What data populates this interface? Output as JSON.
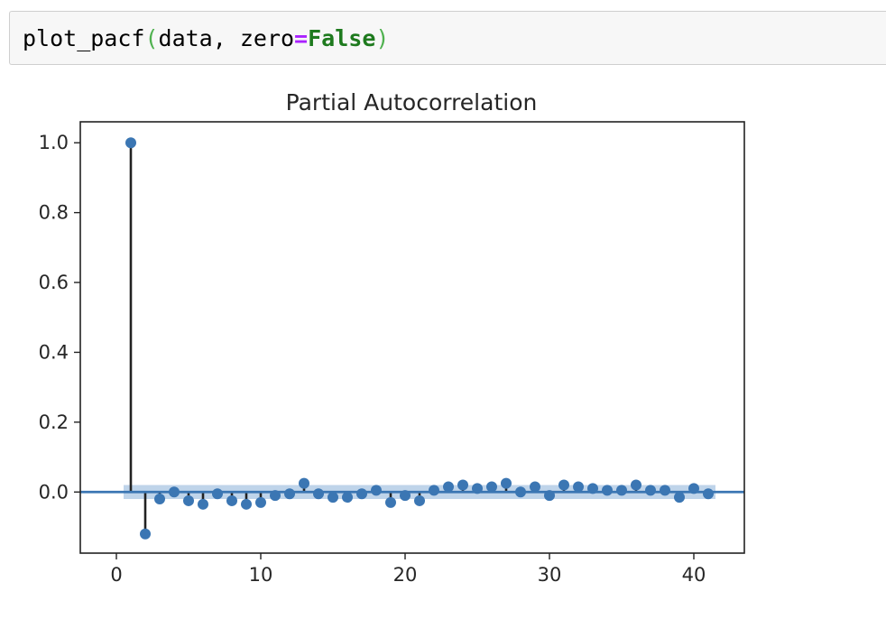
{
  "notebook": {
    "input_cell": {
      "func": "plot_pacf",
      "open_paren": "(",
      "arg1": "data, zero",
      "op": "=",
      "kw": "False",
      "close_paren": ")"
    }
  },
  "chart_data": {
    "type": "scatter",
    "title": "Partial Autocorrelation",
    "xlabel": "",
    "ylabel": "",
    "xlim": [
      -2.5,
      43.5
    ],
    "ylim": [
      -0.175,
      1.06
    ],
    "xticks": [
      0,
      10,
      20,
      30,
      40
    ],
    "yticks": [
      0.0,
      0.2,
      0.4,
      0.6,
      0.8,
      1.0
    ],
    "xtick_labels": [
      "0",
      "10",
      "20",
      "30",
      "40"
    ],
    "ytick_labels": [
      "0.0",
      "0.2",
      "0.4",
      "0.6",
      "0.8",
      "1.0"
    ],
    "grid": false,
    "style": "stem",
    "colors": {
      "marker": "#3b76b3",
      "stem": "#222222",
      "zero_line": "#3b76b3",
      "conf_band": "#a9c6e3"
    },
    "confidence_band": [
      -0.02,
      0.02
    ],
    "x": [
      1,
      2,
      3,
      4,
      5,
      6,
      7,
      8,
      9,
      10,
      11,
      12,
      13,
      14,
      15,
      16,
      17,
      18,
      19,
      20,
      21,
      22,
      23,
      24,
      25,
      26,
      27,
      28,
      29,
      30,
      31,
      32,
      33,
      34,
      35,
      36,
      37,
      38,
      39,
      40,
      41
    ],
    "y": [
      1.0,
      -0.12,
      -0.02,
      0.0,
      -0.025,
      -0.035,
      -0.005,
      -0.025,
      -0.035,
      -0.03,
      -0.01,
      -0.005,
      0.025,
      -0.005,
      -0.015,
      -0.015,
      -0.005,
      0.005,
      -0.03,
      -0.01,
      -0.025,
      0.005,
      0.015,
      0.02,
      0.01,
      0.015,
      0.025,
      0.0,
      0.015,
      -0.01,
      0.02,
      0.015,
      0.01,
      0.005,
      0.005,
      0.02,
      0.005,
      0.005,
      -0.015,
      0.01,
      -0.005
    ]
  }
}
